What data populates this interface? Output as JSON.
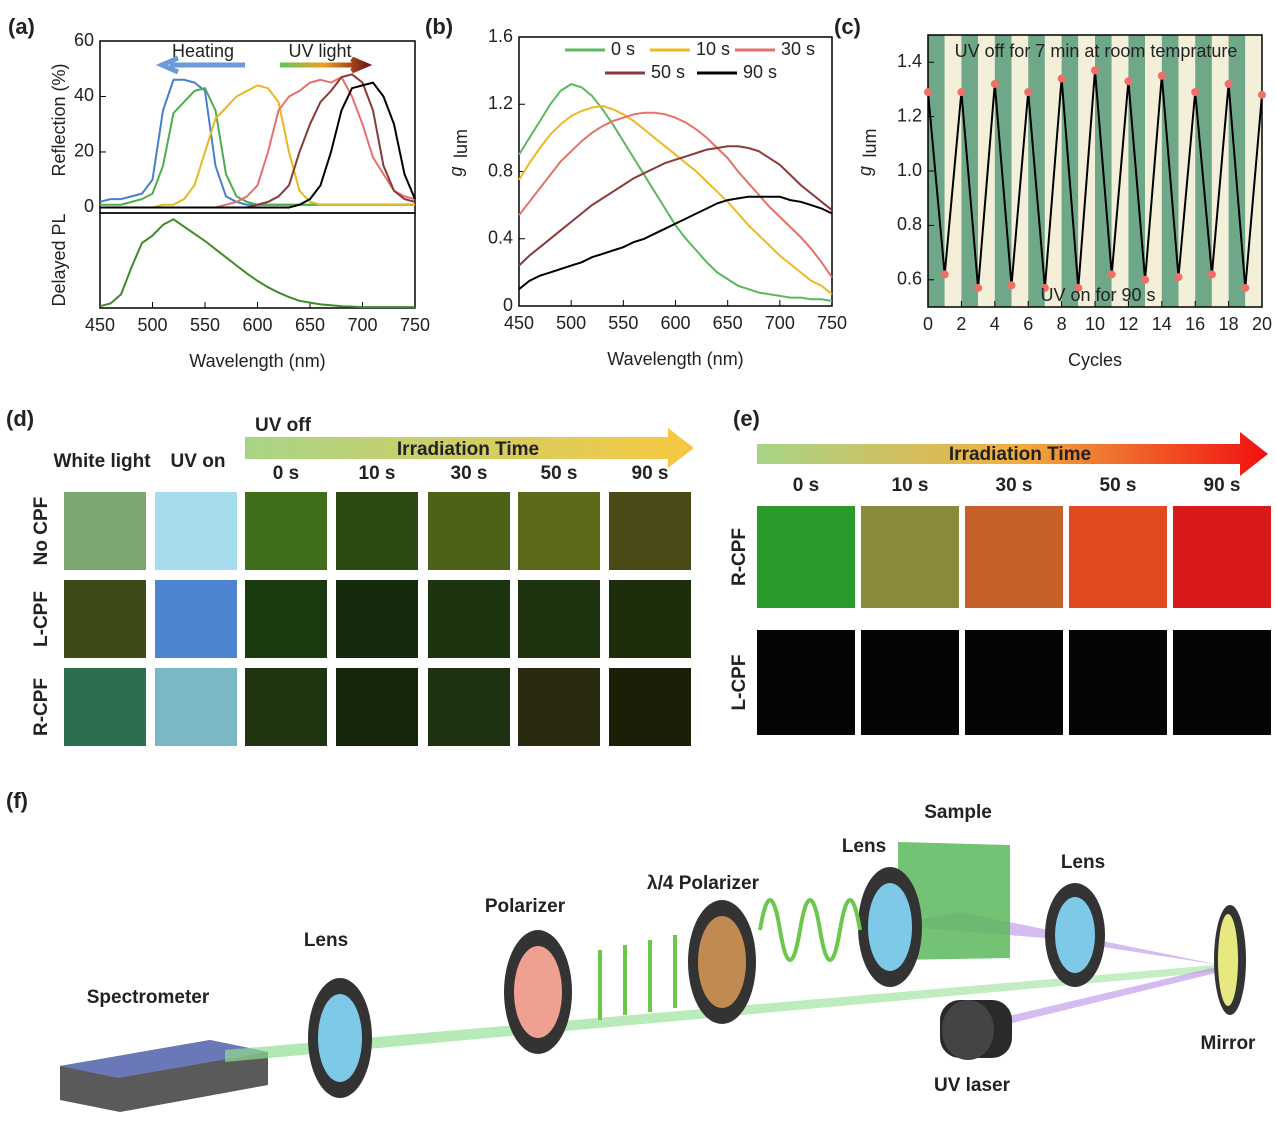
{
  "chart_data": [
    {
      "type": "line",
      "panel": "(a)",
      "ylabel": "Reflection (%)",
      "annotations": [
        "Heating",
        "UV light"
      ],
      "x": [
        450,
        460,
        470,
        480,
        490,
        500,
        510,
        520,
        530,
        540,
        550,
        560,
        570,
        580,
        590,
        600,
        610,
        620,
        630,
        640,
        650,
        660,
        670,
        680,
        690,
        700,
        710,
        720,
        730,
        740,
        750
      ],
      "xlim": [
        450,
        750
      ],
      "ylim": [
        -2,
        60
      ],
      "yticks": [
        0,
        20,
        40,
        60
      ],
      "series": [
        {
          "color": "#4a7fd0",
          "values": [
            2,
            3,
            3,
            4,
            5,
            10,
            35,
            46,
            46,
            45,
            42,
            15,
            4,
            2,
            1,
            1,
            1,
            1,
            1,
            1,
            1,
            1,
            1,
            1,
            1,
            1,
            1,
            1,
            1,
            1,
            1
          ]
        },
        {
          "color": "#4cae4c",
          "values": [
            1,
            1,
            1,
            2,
            3,
            5,
            15,
            34,
            38,
            42,
            43,
            35,
            12,
            4,
            2,
            1,
            1,
            1,
            1,
            1,
            1,
            1,
            1,
            1,
            1,
            1,
            1,
            1,
            1,
            1,
            1
          ]
        },
        {
          "color": "#e8b820",
          "values": [
            0,
            0,
            0,
            0,
            0,
            0,
            1,
            1,
            3,
            8,
            20,
            32,
            36,
            40,
            42,
            44,
            43,
            38,
            20,
            6,
            2,
            1,
            1,
            1,
            1,
            1,
            1,
            1,
            1,
            1,
            1
          ]
        },
        {
          "color": "#e8706a",
          "values": [
            0,
            0,
            0,
            0,
            0,
            0,
            0,
            0,
            0,
            0,
            0,
            0,
            1,
            2,
            4,
            8,
            20,
            35,
            40,
            42,
            45,
            46,
            45,
            47,
            40,
            30,
            18,
            12,
            6,
            4,
            3
          ]
        },
        {
          "color": "#8a3a3a",
          "values": [
            0,
            0,
            0,
            0,
            0,
            0,
            0,
            0,
            0,
            0,
            0,
            0,
            0,
            0,
            0,
            1,
            2,
            4,
            8,
            20,
            30,
            38,
            42,
            47,
            48,
            45,
            35,
            15,
            6,
            3,
            2
          ]
        },
        {
          "color": "#000000",
          "values": [
            0,
            0,
            0,
            0,
            0,
            0,
            0,
            0,
            0,
            0,
            0,
            0,
            0,
            0,
            0,
            0,
            0,
            0,
            0,
            1,
            3,
            8,
            20,
            35,
            43,
            44,
            45,
            40,
            30,
            12,
            3
          ]
        }
      ]
    },
    {
      "type": "line",
      "ylabel": "Delayed PL",
      "xlabel": "Wavelength (nm)",
      "x": [
        450,
        460,
        470,
        480,
        490,
        500,
        510,
        520,
        530,
        540,
        550,
        560,
        570,
        580,
        590,
        600,
        610,
        620,
        630,
        640,
        650,
        660,
        670,
        680,
        690,
        700,
        710,
        720,
        730,
        740,
        750
      ],
      "xlim": [
        450,
        750
      ],
      "ylim": [
        0,
        1.05
      ],
      "xticks": [
        450,
        500,
        550,
        600,
        650,
        700,
        750
      ],
      "series": [
        {
          "color": "#3f8a2a",
          "values": [
            0.02,
            0.05,
            0.15,
            0.45,
            0.72,
            0.8,
            0.92,
            0.98,
            0.9,
            0.82,
            0.74,
            0.65,
            0.56,
            0.47,
            0.38,
            0.3,
            0.23,
            0.17,
            0.12,
            0.08,
            0.06,
            0.04,
            0.03,
            0.02,
            0.015,
            0.01,
            0.01,
            0.01,
            0.01,
            0.01,
            0.01
          ]
        }
      ]
    },
    {
      "type": "line",
      "panel": "(b)",
      "ylabel": "g",
      "ylabel_sub": "lum",
      "xlabel": "Wavelength (nm)",
      "x": [
        450,
        460,
        470,
        480,
        490,
        500,
        510,
        520,
        530,
        540,
        550,
        560,
        570,
        580,
        590,
        600,
        610,
        620,
        630,
        640,
        650,
        660,
        670,
        680,
        690,
        700,
        710,
        720,
        730,
        740,
        750
      ],
      "xlim": [
        450,
        750
      ],
      "ylim": [
        0,
        1.6
      ],
      "xticks": [
        450,
        500,
        550,
        600,
        650,
        700,
        750
      ],
      "yticks": [
        0,
        0.4,
        0.8,
        1.2,
        1.6
      ],
      "series": [
        {
          "name": "0 s",
          "color": "#5cb85c",
          "values": [
            0.9,
            1.0,
            1.1,
            1.2,
            1.28,
            1.32,
            1.3,
            1.25,
            1.17,
            1.08,
            0.98,
            0.88,
            0.78,
            0.68,
            0.58,
            0.48,
            0.4,
            0.33,
            0.26,
            0.2,
            0.16,
            0.12,
            0.1,
            0.08,
            0.07,
            0.06,
            0.05,
            0.05,
            0.04,
            0.04,
            0.03
          ]
        },
        {
          "name": "10 s",
          "color": "#f0b820",
          "values": [
            0.75,
            0.85,
            0.94,
            1.02,
            1.08,
            1.13,
            1.16,
            1.18,
            1.19,
            1.17,
            1.14,
            1.1,
            1.05,
            1.0,
            0.95,
            0.9,
            0.85,
            0.8,
            0.74,
            0.68,
            0.62,
            0.55,
            0.48,
            0.42,
            0.36,
            0.3,
            0.25,
            0.2,
            0.15,
            0.12,
            0.07
          ]
        },
        {
          "name": "30 s",
          "color": "#e8706a",
          "values": [
            0.54,
            0.62,
            0.7,
            0.78,
            0.86,
            0.92,
            0.98,
            1.03,
            1.07,
            1.1,
            1.12,
            1.14,
            1.15,
            1.15,
            1.14,
            1.12,
            1.09,
            1.05,
            1.0,
            0.94,
            0.88,
            0.8,
            0.73,
            0.66,
            0.59,
            0.53,
            0.47,
            0.41,
            0.34,
            0.26,
            0.17
          ]
        },
        {
          "name": "50 s",
          "color": "#8a3a3a",
          "values": [
            0.24,
            0.3,
            0.35,
            0.4,
            0.45,
            0.5,
            0.55,
            0.6,
            0.64,
            0.68,
            0.72,
            0.76,
            0.79,
            0.82,
            0.85,
            0.87,
            0.89,
            0.91,
            0.93,
            0.94,
            0.95,
            0.95,
            0.94,
            0.92,
            0.88,
            0.84,
            0.78,
            0.72,
            0.67,
            0.62,
            0.57
          ]
        },
        {
          "name": "90 s",
          "color": "#000000",
          "values": [
            0.1,
            0.15,
            0.18,
            0.2,
            0.22,
            0.24,
            0.26,
            0.29,
            0.31,
            0.33,
            0.35,
            0.38,
            0.4,
            0.43,
            0.46,
            0.49,
            0.52,
            0.55,
            0.58,
            0.61,
            0.63,
            0.64,
            0.65,
            0.65,
            0.65,
            0.65,
            0.63,
            0.62,
            0.6,
            0.58,
            0.55
          ]
        }
      ]
    },
    {
      "type": "line",
      "panel": "(c)",
      "ylabel": "g",
      "ylabel_sub": "lum",
      "xlabel": "Cycles",
      "markers": true,
      "annotations": [
        "UV off for 7 min at room temprature",
        "UV on for 90 s"
      ],
      "x": [
        0,
        1,
        2,
        3,
        4,
        5,
        6,
        7,
        8,
        9,
        10,
        11,
        12,
        13,
        14,
        15,
        16,
        17,
        18,
        19,
        20
      ],
      "xlim": [
        0,
        20
      ],
      "ylim": [
        0.5,
        1.5
      ],
      "xticks": [
        0,
        2,
        4,
        6,
        8,
        10,
        12,
        14,
        16,
        18,
        20
      ],
      "yticks": [
        0.6,
        0.8,
        {
          "value": 1,
          "label": "1.0"
        },
        1.2,
        1.4
      ],
      "series": [
        {
          "color": "#000000",
          "marker_color": "#f07068",
          "values": [
            1.29,
            0.62,
            1.29,
            0.57,
            1.32,
            0.58,
            1.29,
            0.57,
            1.34,
            0.57,
            1.37,
            0.62,
            1.33,
            0.6,
            1.35,
            0.61,
            1.29,
            0.62,
            1.32,
            0.57,
            1.28
          ]
        }
      ]
    }
  ],
  "panel_d": {
    "label": "(d)",
    "uv_off": "UV off",
    "arrow": "Irradiation Time",
    "times": [
      "0 s",
      "10 s",
      "30 s",
      "50 s",
      "90 s"
    ],
    "white_light": "White light",
    "uv_on": "UV on",
    "rows": [
      "No CPF",
      "L-CPF",
      "R-CPF"
    ]
  },
  "panel_e": {
    "label": "(e)",
    "arrow": "Irradiation Time",
    "times": [
      "0 s",
      "10 s",
      "30 s",
      "50 s",
      "90 s"
    ],
    "rows": [
      "R-CPF",
      "L-CPF"
    ]
  },
  "panel_f": {
    "label": "(f)",
    "parts": [
      "Spectrometer",
      "Lens",
      "Polarizer",
      "λ/4 Polarizer",
      "Lens",
      "Sample",
      "Lens",
      "Mirror",
      "UV laser"
    ]
  }
}
